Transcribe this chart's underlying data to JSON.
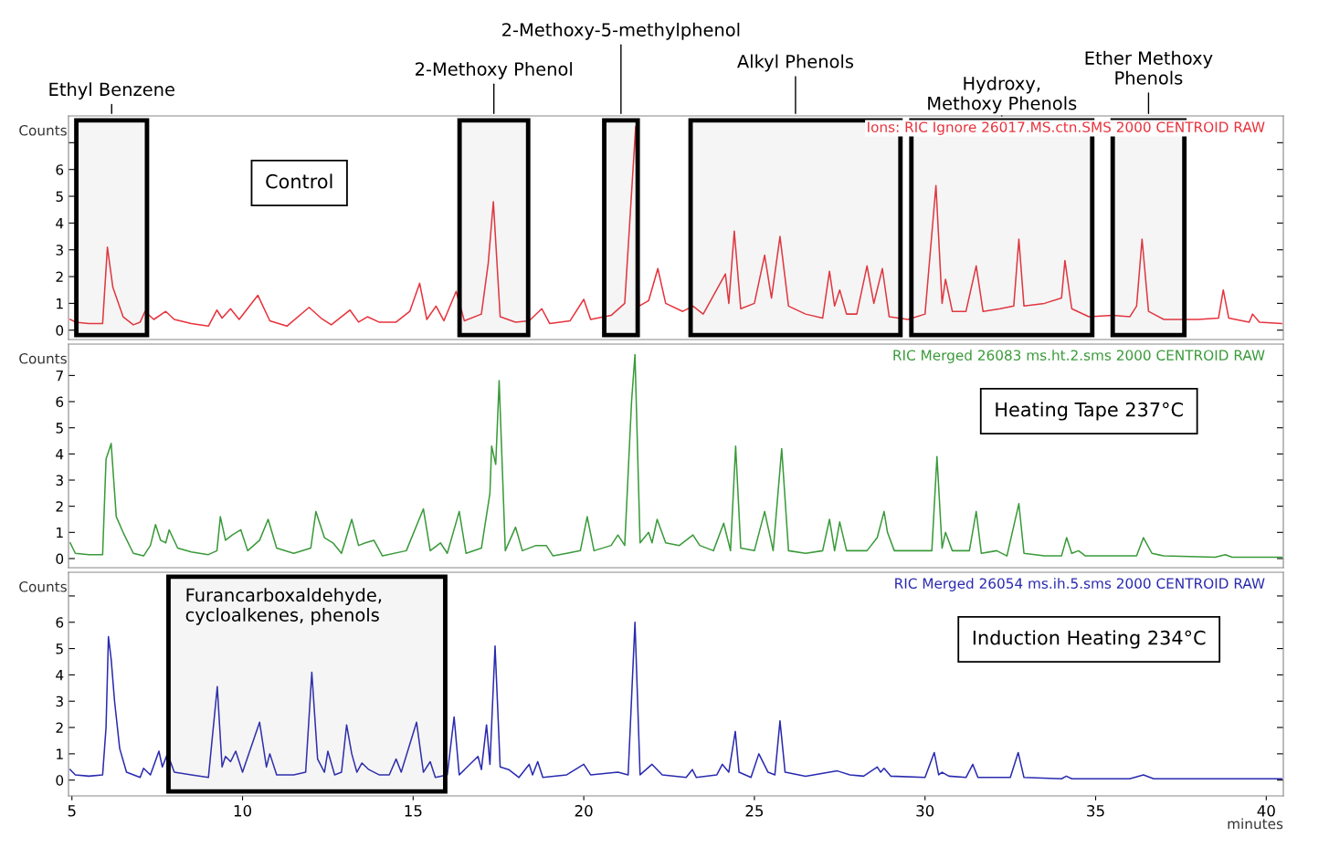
{
  "chart_data": [
    {
      "type": "line",
      "title": "Control",
      "subtitle": "Ions: RIC Ignore 26017.MS.ctn.SMS 2000 CENTROID RAW",
      "ylabel": "Counts",
      "tick_labels": "y",
      "xlim": [
        4.9,
        40.5
      ],
      "ylim": [
        -0.35,
        8
      ],
      "yticks": [
        0,
        1,
        2,
        3,
        4,
        5,
        6,
        {
          "value": 7,
          "label": null
        }
      ],
      "x": [
        4.95,
        5.1,
        5.5,
        5.9,
        6.04,
        6.2,
        6.5,
        6.8,
        7.0,
        7.14,
        7.4,
        7.75,
        8.0,
        8.5,
        9.0,
        9.25,
        9.4,
        9.65,
        9.9,
        10.45,
        10.8,
        11.3,
        11.95,
        12.3,
        12.6,
        13.15,
        13.4,
        13.66,
        14.0,
        14.5,
        14.9,
        15.19,
        15.4,
        15.67,
        15.9,
        16.26,
        16.5,
        17.0,
        17.2,
        17.35,
        17.55,
        18.0,
        18.4,
        18.77,
        19.0,
        19.6,
        20.0,
        20.2,
        20.8,
        21.2,
        21.52,
        21.62,
        21.9,
        22.17,
        22.4,
        22.9,
        23.2,
        23.5,
        24.15,
        24.25,
        24.41,
        24.6,
        25.0,
        25.3,
        25.5,
        25.75,
        26.0,
        26.5,
        27.0,
        27.2,
        27.35,
        27.5,
        27.7,
        28.0,
        28.3,
        28.5,
        28.75,
        28.95,
        29.5,
        30.0,
        30.32,
        30.5,
        30.6,
        30.8,
        31.2,
        31.5,
        31.7,
        32.2,
        32.6,
        32.75,
        32.9,
        33.5,
        34.0,
        34.1,
        34.3,
        34.8,
        35.5,
        36.0,
        36.2,
        36.36,
        36.55,
        37.0,
        38.0,
        38.6,
        38.74,
        38.9,
        39.5,
        39.6,
        39.8,
        40.45
      ],
      "series": [
        {
          "color": "#e8323c",
          "values": [
            0.4,
            0.3,
            0.25,
            0.25,
            3.1,
            1.6,
            0.5,
            0.2,
            0.3,
            0.7,
            0.4,
            0.7,
            0.4,
            0.25,
            0.15,
            0.75,
            0.45,
            0.8,
            0.4,
            1.3,
            0.35,
            0.15,
            0.85,
            0.45,
            0.2,
            0.75,
            0.3,
            0.5,
            0.3,
            0.3,
            0.7,
            1.75,
            0.4,
            0.9,
            0.35,
            1.45,
            0.35,
            0.6,
            2.5,
            4.8,
            0.5,
            0.3,
            0.35,
            0.8,
            0.25,
            0.35,
            1.15,
            0.4,
            0.55,
            1.0,
            7.6,
            0.9,
            1.1,
            2.3,
            1.0,
            0.7,
            0.9,
            0.6,
            2.1,
            1.0,
            3.7,
            0.8,
            1.0,
            2.8,
            1.2,
            3.5,
            0.9,
            0.6,
            0.45,
            2.2,
            0.9,
            1.5,
            0.6,
            0.6,
            2.4,
            1.0,
            2.3,
            0.5,
            0.4,
            0.6,
            5.4,
            1.0,
            1.9,
            0.7,
            0.7,
            2.4,
            0.7,
            0.8,
            0.9,
            3.4,
            0.9,
            1.0,
            1.2,
            2.6,
            0.8,
            0.5,
            0.55,
            0.5,
            0.9,
            3.4,
            0.7,
            0.4,
            0.4,
            0.45,
            1.5,
            0.45,
            0.3,
            0.6,
            0.3,
            0.25
          ]
        }
      ],
      "bands": [
        {
          "axis": "x",
          "from": 5.13,
          "to": 7.2,
          "label": "Ethyl Benzene"
        },
        {
          "axis": "x",
          "from": 16.36,
          "to": 18.37,
          "label": "2-Methoxy Phenol"
        },
        {
          "axis": "x",
          "from": 20.6,
          "to": 21.58,
          "label": "2-Methoxy-5-methylphenol"
        },
        {
          "axis": "x",
          "from": 23.13,
          "to": 29.28,
          "label": "Alkyl Phenols"
        },
        {
          "axis": "x",
          "from": 29.6,
          "to": 34.9,
          "label": "Hydroxy,\nMethoxy Phenols"
        },
        {
          "axis": "x",
          "from": 35.5,
          "to": 37.6,
          "label": "Ether Methoxy\nPhenols"
        }
      ]
    },
    {
      "type": "line",
      "title": "Heating Tape 237°C",
      "subtitle": "RIC Merged 26083 ms.ht.2.sms 2000 CENTROID RAW",
      "ylabel": "Counts",
      "tick_labels": "y",
      "xlim": [
        4.9,
        40.5
      ],
      "ylim": [
        -0.35,
        8.2
      ],
      "yticks": [
        0,
        1,
        2,
        3,
        4,
        5,
        6,
        7
      ],
      "x": [
        4.95,
        5.1,
        5.5,
        5.9,
        6.0,
        6.15,
        6.3,
        6.5,
        6.8,
        7.1,
        7.3,
        7.45,
        7.6,
        7.75,
        7.85,
        8.1,
        8.5,
        9.0,
        9.25,
        9.35,
        9.5,
        9.7,
        9.95,
        10.15,
        10.5,
        10.75,
        11.0,
        11.5,
        12.0,
        12.15,
        12.4,
        12.65,
        12.9,
        13.2,
        13.4,
        13.6,
        13.85,
        14.1,
        14.8,
        15.3,
        15.5,
        15.8,
        16.0,
        16.35,
        16.55,
        17.0,
        17.25,
        17.3,
        17.42,
        17.52,
        17.7,
        18.0,
        18.2,
        18.6,
        18.9,
        19.1,
        19.5,
        19.9,
        20.1,
        20.3,
        20.8,
        21.0,
        21.2,
        21.4,
        21.5,
        21.65,
        21.9,
        22.0,
        22.15,
        22.4,
        22.8,
        23.2,
        23.4,
        23.8,
        24.1,
        24.3,
        24.45,
        24.6,
        25.0,
        25.3,
        25.55,
        25.8,
        26.0,
        26.5,
        27.0,
        27.2,
        27.35,
        27.5,
        27.7,
        28.3,
        28.6,
        28.8,
        28.9,
        29.1,
        29.8,
        30.2,
        30.35,
        30.5,
        30.6,
        30.8,
        31.3,
        31.5,
        31.65,
        32.1,
        32.4,
        32.75,
        32.9,
        33.5,
        34.0,
        34.15,
        34.3,
        34.5,
        34.7,
        35.5,
        36.2,
        36.4,
        36.65,
        37.0,
        38.5,
        38.8,
        39.0,
        40.45
      ],
      "series": [
        {
          "color": "#3a9a3a",
          "values": [
            0.6,
            0.2,
            0.15,
            0.15,
            3.8,
            4.4,
            1.6,
            1.0,
            0.2,
            0.1,
            0.5,
            1.3,
            0.7,
            0.6,
            1.1,
            0.4,
            0.25,
            0.15,
            0.3,
            1.6,
            0.7,
            0.9,
            1.1,
            0.3,
            0.7,
            1.5,
            0.4,
            0.2,
            0.4,
            1.8,
            0.8,
            0.6,
            0.2,
            1.5,
            0.5,
            0.6,
            0.7,
            0.1,
            0.3,
            1.9,
            0.3,
            0.6,
            0.2,
            1.8,
            0.2,
            0.4,
            2.5,
            4.3,
            3.6,
            6.8,
            0.3,
            1.2,
            0.3,
            0.5,
            0.5,
            0.1,
            0.2,
            0.3,
            1.6,
            0.3,
            0.5,
            0.9,
            0.5,
            6.0,
            7.8,
            0.6,
            1.0,
            0.6,
            1.5,
            0.6,
            0.5,
            0.9,
            0.5,
            0.3,
            1.35,
            0.3,
            4.3,
            0.4,
            0.3,
            1.8,
            0.3,
            4.2,
            0.3,
            0.2,
            0.3,
            1.5,
            0.3,
            1.4,
            0.3,
            0.3,
            0.8,
            1.8,
            1.0,
            0.3,
            0.3,
            0.3,
            3.9,
            0.4,
            1.0,
            0.3,
            0.3,
            1.8,
            0.2,
            0.3,
            0.1,
            2.1,
            0.2,
            0.1,
            0.1,
            0.8,
            0.2,
            0.3,
            0.1,
            0.1,
            0.1,
            0.8,
            0.2,
            0.1,
            0.05,
            0.15,
            0.05,
            0.05
          ]
        }
      ]
    },
    {
      "type": "line",
      "title": "Induction Heating 234°C",
      "subtitle": "RIC Merged 26054 ms.ih.5.sms 2000 CENTROID RAW",
      "ylabel": "Counts",
      "xlabel": "minutes",
      "xlim": [
        4.9,
        40.5
      ],
      "ylim": [
        -0.6,
        7.9
      ],
      "yticks": [
        0,
        1,
        2,
        3,
        4,
        5,
        6,
        {
          "value": 7,
          "label": null
        }
      ],
      "xticks": [
        5,
        10,
        15,
        20,
        25,
        30,
        35,
        40
      ],
      "x": [
        4.95,
        5.1,
        5.5,
        5.9,
        6.0,
        6.07,
        6.15,
        6.25,
        6.4,
        6.6,
        7.0,
        7.1,
        7.3,
        7.55,
        7.65,
        7.8,
        8.0,
        8.5,
        9.0,
        9.26,
        9.4,
        9.5,
        9.65,
        9.8,
        10.0,
        10.5,
        10.7,
        10.8,
        11.0,
        11.5,
        11.85,
        12.03,
        12.2,
        12.4,
        12.5,
        12.7,
        12.9,
        13.05,
        13.2,
        13.35,
        13.5,
        13.7,
        14.0,
        14.3,
        14.5,
        14.65,
        15.1,
        15.3,
        15.5,
        15.65,
        16.0,
        16.2,
        16.35,
        16.9,
        17.0,
        17.15,
        17.25,
        17.4,
        17.55,
        17.8,
        18.1,
        18.4,
        18.5,
        18.65,
        18.8,
        19.5,
        20.0,
        20.2,
        21.0,
        21.3,
        21.5,
        21.65,
        22.0,
        22.3,
        23.0,
        23.18,
        23.3,
        23.9,
        24.06,
        24.25,
        24.44,
        24.55,
        24.9,
        25.13,
        25.4,
        25.6,
        25.75,
        25.9,
        26.5,
        27.2,
        27.43,
        27.8,
        28.2,
        28.6,
        28.7,
        28.8,
        29.0,
        30.0,
        30.27,
        30.4,
        30.5,
        30.7,
        31.2,
        31.4,
        31.55,
        32.5,
        32.73,
        32.9,
        34.0,
        34.14,
        34.3,
        36.0,
        36.4,
        36.7,
        40.45
      ],
      "series": [
        {
          "color": "#2a2ab0",
          "values": [
            0.4,
            0.2,
            0.15,
            0.2,
            2.0,
            5.45,
            4.6,
            3.0,
            1.2,
            0.3,
            0.1,
            0.45,
            0.2,
            1.1,
            0.5,
            1.0,
            0.3,
            0.2,
            0.1,
            3.55,
            0.5,
            0.9,
            0.7,
            1.1,
            0.3,
            2.2,
            0.5,
            1.0,
            0.2,
            0.2,
            0.3,
            4.1,
            0.8,
            0.3,
            1.1,
            0.2,
            0.3,
            2.1,
            1.0,
            0.3,
            0.65,
            0.4,
            0.2,
            0.2,
            0.8,
            0.3,
            2.2,
            0.3,
            0.7,
            0.1,
            0.2,
            2.4,
            0.2,
            0.9,
            0.4,
            2.1,
            0.6,
            5.1,
            0.5,
            0.4,
            0.1,
            0.6,
            0.2,
            0.7,
            0.1,
            0.2,
            0.6,
            0.2,
            0.3,
            0.2,
            6.0,
            0.2,
            0.6,
            0.2,
            0.1,
            0.4,
            0.1,
            0.2,
            0.6,
            0.3,
            1.85,
            0.3,
            0.1,
            1.0,
            0.3,
            0.2,
            2.25,
            0.3,
            0.15,
            0.3,
            0.35,
            0.2,
            0.15,
            0.5,
            0.3,
            0.45,
            0.15,
            0.1,
            1.05,
            0.2,
            0.3,
            0.15,
            0.1,
            0.6,
            0.1,
            0.1,
            1.05,
            0.1,
            0.05,
            0.15,
            0.05,
            0.05,
            0.2,
            0.05,
            0.05
          ]
        }
      ],
      "bands": [
        {
          "axis": "x",
          "from": 7.83,
          "to": 15.94,
          "label": "Furancarboxaldehyde,\ncycloalkenes, phenols"
        }
      ]
    }
  ]
}
